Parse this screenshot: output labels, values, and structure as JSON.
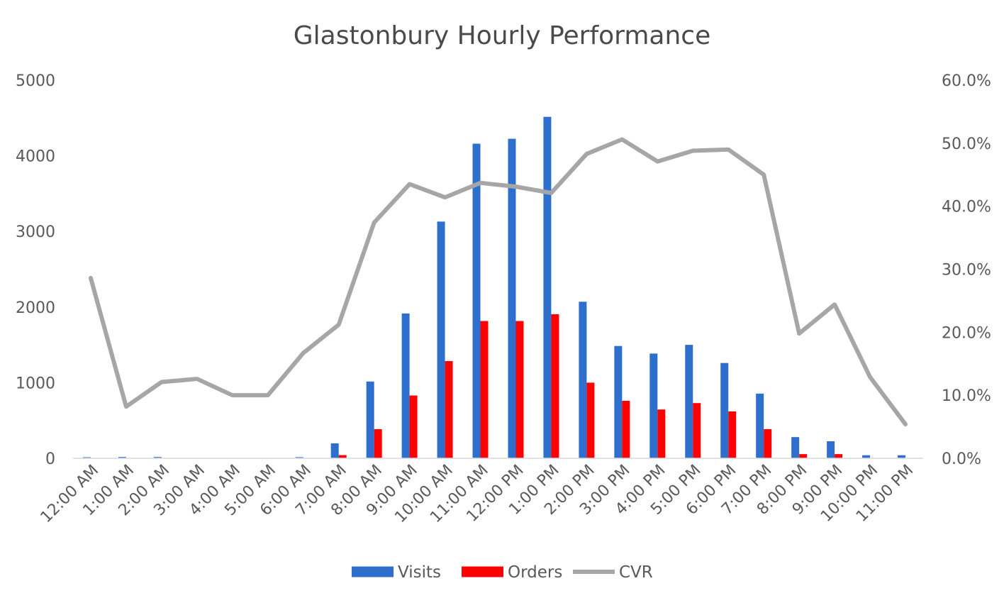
{
  "chart_data": {
    "type": "bar",
    "title": "Glastonbury Hourly Performance",
    "categories": [
      "12:00 AM",
      "1:00 AM",
      "2:00 AM",
      "3:00 AM",
      "4:00 AM",
      "5:00 AM",
      "6:00 AM",
      "7:00 AM",
      "8:00 AM",
      "9:00 AM",
      "10:00 AM",
      "11:00 AM",
      "12:00 PM",
      "1:00 PM",
      "2:00 PM",
      "3:00 PM",
      "4:00 PM",
      "5:00 PM",
      "6:00 PM",
      "7:00 PM",
      "8:00 PM",
      "9:00 PM",
      "10:00 PM",
      "11:00 PM"
    ],
    "series": [
      {
        "name": "Visits",
        "kind": "bar",
        "axis": "left",
        "color": "#2e6fce",
        "values": [
          14,
          17,
          17,
          2,
          2,
          2,
          15,
          197,
          1015,
          1915,
          3130,
          4160,
          4225,
          4515,
          2070,
          1485,
          1385,
          1500,
          1260,
          855,
          280,
          225,
          40,
          40
        ]
      },
      {
        "name": "Orders",
        "kind": "bar",
        "axis": "left",
        "color": "#ff0000",
        "values": [
          4,
          1,
          2,
          0,
          0,
          0,
          2,
          42,
          385,
          830,
          1285,
          1815,
          1815,
          1905,
          1000,
          760,
          645,
          730,
          620,
          385,
          55,
          55,
          5,
          2
        ]
      },
      {
        "name": "CVR",
        "kind": "line",
        "axis": "right",
        "color": "#a6a6a6",
        "values": [
          28.6,
          8.2,
          12.1,
          12.6,
          10.0,
          10.0,
          16.7,
          21.2,
          37.4,
          43.5,
          41.4,
          43.7,
          43.1,
          42.1,
          48.3,
          50.6,
          47.1,
          48.8,
          49.0,
          45.0,
          19.8,
          24.4,
          12.9,
          5.4
        ]
      }
    ],
    "y_left": {
      "min": 0,
      "max": 5000,
      "ticks": [
        "0",
        "1000",
        "2000",
        "3000",
        "4000",
        "5000"
      ]
    },
    "y_right": {
      "min": 0,
      "max": 60,
      "ticks": [
        "0.0%",
        "10.0%",
        "20.0%",
        "30.0%",
        "40.0%",
        "50.0%",
        "60.0%"
      ]
    },
    "grid": false,
    "legend_position": "bottom"
  }
}
